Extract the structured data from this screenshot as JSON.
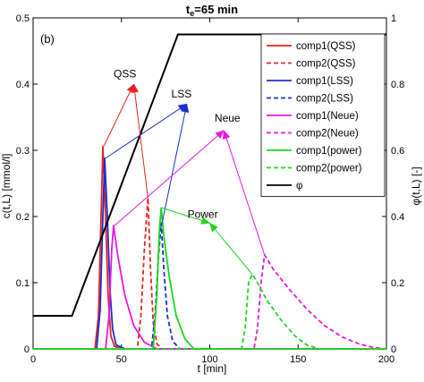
{
  "chart_data": {
    "type": "line",
    "title": "t_e=65 min",
    "panel_label": "(b)",
    "xlabel": "t [min]",
    "ylabel_left": "c(t,L) [mmol/l]",
    "ylabel_right": "φ(t,L) [-]",
    "xlim": [
      0,
      200
    ],
    "ylim_left": [
      0,
      0.5
    ],
    "ylim_right": [
      0,
      1
    ],
    "x_ticks": [
      0,
      50,
      100,
      150,
      200
    ],
    "y_ticks_left": [
      0,
      0.1,
      0.2,
      0.3,
      0.4,
      0.5
    ],
    "y_ticks_right": [
      0,
      0.2,
      0.4,
      0.6,
      0.8,
      1
    ],
    "grid": false,
    "legend_position": "top-right",
    "series": [
      {
        "name": "comp1(QSS)",
        "color": "#e8231f",
        "dash": "solid",
        "axis": "left",
        "points": [
          [
            0,
            0
          ],
          [
            35,
            0
          ],
          [
            37,
            0.05
          ],
          [
            38.5,
            0.2
          ],
          [
            39.5,
            0.306
          ],
          [
            41,
            0.2
          ],
          [
            42.5,
            0.08
          ],
          [
            44,
            0.02
          ],
          [
            46,
            0.004
          ],
          [
            50,
            0
          ],
          [
            200,
            0
          ]
        ]
      },
      {
        "name": "comp2(QSS)",
        "color": "#e8231f",
        "dash": "dashed",
        "axis": "left",
        "points": [
          [
            0,
            0
          ],
          [
            59,
            0
          ],
          [
            61,
            0.05
          ],
          [
            63,
            0.15
          ],
          [
            65,
            0.228
          ],
          [
            66.5,
            0.12
          ],
          [
            68,
            0.04
          ],
          [
            70,
            0.008
          ],
          [
            73,
            0
          ],
          [
            200,
            0
          ]
        ]
      },
      {
        "name": "comp1(LSS)",
        "color": "#1a2fd1",
        "dash": "solid",
        "axis": "left",
        "points": [
          [
            0,
            0
          ],
          [
            36,
            0
          ],
          [
            38,
            0.06
          ],
          [
            39.5,
            0.2
          ],
          [
            40.5,
            0.288
          ],
          [
            42,
            0.2
          ],
          [
            43.5,
            0.09
          ],
          [
            45,
            0.03
          ],
          [
            47,
            0.006
          ],
          [
            52,
            0
          ],
          [
            200,
            0
          ]
        ]
      },
      {
        "name": "comp2(LSS)",
        "color": "#1a2fd1",
        "dash": "dashed",
        "axis": "left",
        "points": [
          [
            0,
            0
          ],
          [
            67,
            0
          ],
          [
            69,
            0.05
          ],
          [
            71,
            0.14
          ],
          [
            72.5,
            0.19
          ],
          [
            74,
            0.12
          ],
          [
            76,
            0.05
          ],
          [
            79,
            0.012
          ],
          [
            83,
            0
          ],
          [
            200,
            0
          ]
        ]
      },
      {
        "name": "comp1(Neue)",
        "color": "#e619e0",
        "dash": "solid",
        "axis": "left",
        "points": [
          [
            0,
            0
          ],
          [
            41,
            0
          ],
          [
            43,
            0.05
          ],
          [
            44.5,
            0.15
          ],
          [
            45.5,
            0.186
          ],
          [
            48,
            0.14
          ],
          [
            52,
            0.08
          ],
          [
            57,
            0.035
          ],
          [
            63,
            0.01
          ],
          [
            70,
            0
          ],
          [
            200,
            0
          ]
        ]
      },
      {
        "name": "comp2(Neue)",
        "color": "#e619e0",
        "dash": "dashed",
        "axis": "left",
        "points": [
          [
            0,
            0
          ],
          [
            125,
            0
          ],
          [
            127,
            0.03
          ],
          [
            129,
            0.1
          ],
          [
            131,
            0.142
          ],
          [
            136,
            0.12
          ],
          [
            145,
            0.09
          ],
          [
            155,
            0.06
          ],
          [
            165,
            0.035
          ],
          [
            175,
            0.018
          ],
          [
            185,
            0.007
          ],
          [
            193,
            0.002
          ],
          [
            200,
            0
          ]
        ]
      },
      {
        "name": "comp1(power)",
        "color": "#1ed61e",
        "dash": "solid",
        "axis": "left",
        "points": [
          [
            0,
            0
          ],
          [
            68,
            0
          ],
          [
            70,
            0.08
          ],
          [
            71.5,
            0.18
          ],
          [
            72.5,
            0.213
          ],
          [
            74,
            0.17
          ],
          [
            77,
            0.11
          ],
          [
            81,
            0.05
          ],
          [
            86,
            0.015
          ],
          [
            91,
            0
          ],
          [
            200,
            0
          ]
        ]
      },
      {
        "name": "comp2(power)",
        "color": "#1ed61e",
        "dash": "dashed",
        "axis": "left",
        "points": [
          [
            0,
            0
          ],
          [
            118,
            0
          ],
          [
            120,
            0.03
          ],
          [
            122,
            0.1
          ],
          [
            124,
            0.113
          ],
          [
            127,
            0.1
          ],
          [
            132,
            0.075
          ],
          [
            140,
            0.045
          ],
          [
            148,
            0.02
          ],
          [
            155,
            0.006
          ],
          [
            162,
            0
          ],
          [
            200,
            0
          ]
        ]
      },
      {
        "name": "φ",
        "color": "#000000",
        "dash": "solid",
        "axis": "right",
        "points": [
          [
            0,
            0.1
          ],
          [
            22,
            0.1
          ],
          [
            82,
            0.95
          ],
          [
            200,
            0.95
          ]
        ]
      }
    ],
    "annotations": [
      {
        "text": "QSS",
        "color": "#e8231f",
        "label_at": [
          52,
          0.41
        ],
        "arrow_head": [
          57,
          0.4
        ],
        "from": [
          [
            40,
            0.306
          ],
          [
            65,
            0.228
          ]
        ]
      },
      {
        "text": "LSS",
        "color": "#1a2fd1",
        "label_at": [
          84,
          0.38
        ],
        "arrow_head": [
          87,
          0.37
        ],
        "from": [
          [
            41,
            0.288
          ],
          [
            73,
            0.19
          ]
        ]
      },
      {
        "text": "Neue",
        "color": "#e619e0",
        "label_at": [
          110,
          0.343
        ],
        "arrow_head": [
          108,
          0.33
        ],
        "from": [
          [
            46,
            0.186
          ],
          [
            131,
            0.142
          ]
        ]
      },
      {
        "text": "Power",
        "color": "#1ed61e",
        "label_at": [
          96,
          0.198
        ],
        "arrow_head": [
          100,
          0.19
        ],
        "from": [
          [
            73,
            0.213
          ],
          [
            124,
            0.113
          ]
        ]
      }
    ]
  }
}
